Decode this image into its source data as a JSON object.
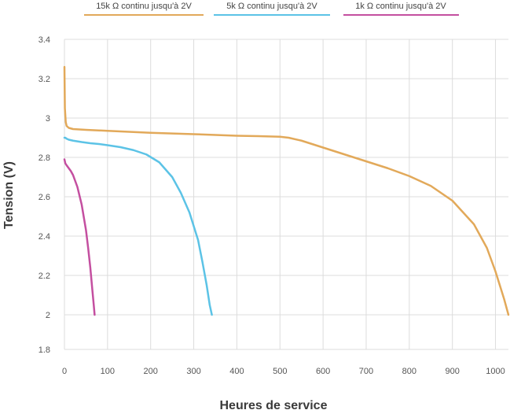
{
  "chart_data": {
    "type": "line",
    "xlabel": "Heures de service",
    "ylabel": "Tension (V)",
    "xlim": [
      0,
      1030
    ],
    "ylim": [
      1.8,
      3.4
    ],
    "xticks": [
      0,
      100,
      200,
      300,
      400,
      500,
      600,
      700,
      800,
      900,
      1000
    ],
    "yticks": [
      1.8,
      2,
      2.2,
      2.4,
      2.6,
      2.8,
      3,
      3.2,
      3.4
    ],
    "grid": true,
    "legend_position": "top",
    "series": [
      {
        "name": "15k Ω continu jusqu'à 2V",
        "color": "#e2a95a",
        "x": [
          0,
          1,
          3,
          5,
          10,
          20,
          50,
          100,
          200,
          300,
          400,
          450,
          500,
          520,
          550,
          600,
          650,
          700,
          750,
          800,
          850,
          900,
          950,
          980,
          1000,
          1020,
          1030
        ],
        "y": [
          3.26,
          3.05,
          2.98,
          2.96,
          2.95,
          2.944,
          2.94,
          2.935,
          2.925,
          2.918,
          2.91,
          2.908,
          2.905,
          2.9,
          2.885,
          2.85,
          2.815,
          2.78,
          2.745,
          2.705,
          2.655,
          2.58,
          2.46,
          2.34,
          2.22,
          2.08,
          2.0
        ]
      },
      {
        "name": "5k Ω continu jusqu'à 2V",
        "color": "#5cc3e6",
        "x": [
          0,
          2,
          5,
          10,
          20,
          40,
          60,
          80,
          100,
          130,
          160,
          190,
          220,
          250,
          270,
          290,
          310,
          320,
          330,
          337,
          342
        ],
        "y": [
          2.9,
          2.9,
          2.895,
          2.89,
          2.885,
          2.878,
          2.872,
          2.868,
          2.862,
          2.852,
          2.837,
          2.815,
          2.775,
          2.7,
          2.62,
          2.52,
          2.38,
          2.27,
          2.15,
          2.05,
          2.0
        ]
      },
      {
        "name": "1k Ω continu jusqu'à 2V",
        "color": "#c44fa0",
        "x": [
          0,
          2,
          5,
          10,
          15,
          20,
          30,
          40,
          50,
          55,
          60,
          65,
          68,
          70
        ],
        "y": [
          2.79,
          2.77,
          2.76,
          2.745,
          2.73,
          2.71,
          2.65,
          2.56,
          2.43,
          2.34,
          2.24,
          2.12,
          2.05,
          2.0
        ]
      }
    ]
  }
}
